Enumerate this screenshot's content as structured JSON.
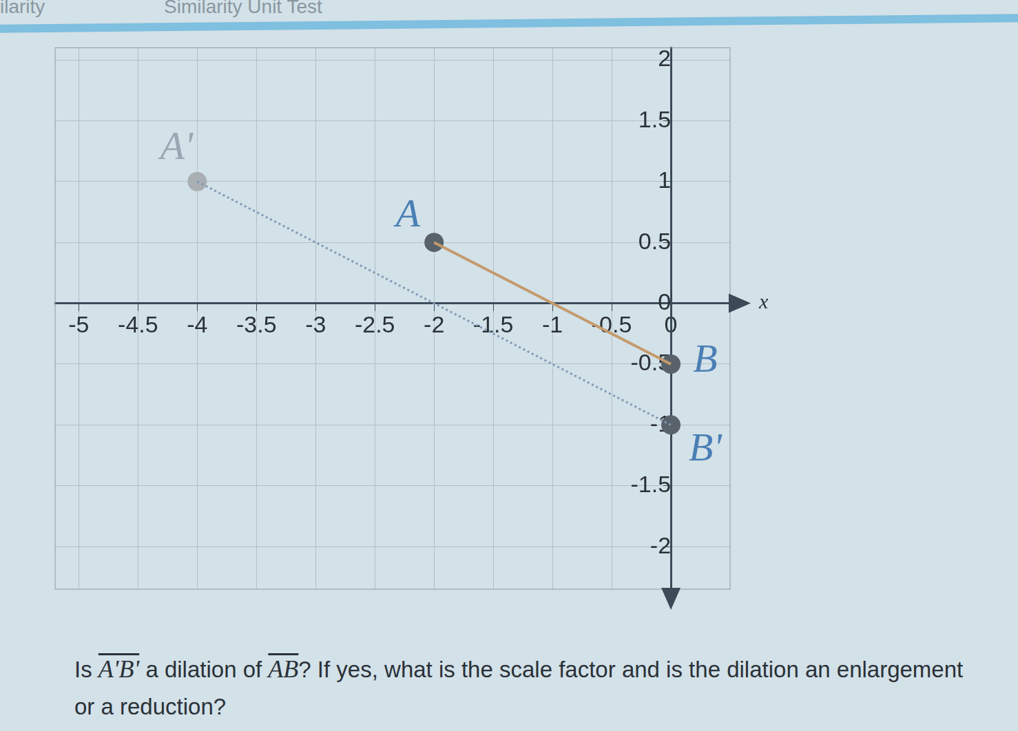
{
  "header": {
    "tabs": [
      "ilarity",
      "Similarity Unit Test"
    ]
  },
  "chart_data": {
    "type": "scatter",
    "xlabel": "x",
    "xlim": [
      -5.2,
      0.5
    ],
    "ylim": [
      -2.35,
      2.1
    ],
    "xticks": [
      -5,
      -4.5,
      -4,
      -3.5,
      -3,
      -2.5,
      -2,
      -1.5,
      -1,
      -0.5,
      0
    ],
    "yticks": [
      -2,
      -1.5,
      -1,
      -0.5,
      0,
      0.5,
      1,
      1.5,
      2
    ],
    "grid": true,
    "points": [
      {
        "label": "A'",
        "x": -4,
        "y": 1,
        "color": "#a9aeb3"
      },
      {
        "label": "A",
        "x": -2,
        "y": 0.5,
        "color": "#59626b"
      },
      {
        "label": "B",
        "x": 0,
        "y": -0.5,
        "color": "#59626b"
      },
      {
        "label": "B'",
        "x": 0,
        "y": -1,
        "color": "#59626b"
      }
    ],
    "segments": [
      {
        "from": "A'",
        "to": "B'",
        "color": "#7f9bb5",
        "line_style": "dotted"
      },
      {
        "from": "A",
        "to": "B",
        "color": "#c49a6c",
        "line_style": "solid"
      }
    ]
  },
  "question": [
    {
      "text": "Is "
    },
    {
      "overline": "A'B'"
    },
    {
      "text": " a dilation of "
    },
    {
      "overline": "AB"
    },
    {
      "text": "? If yes, what is the scale factor and is the dilation an enlargement or a reduction?"
    }
  ]
}
